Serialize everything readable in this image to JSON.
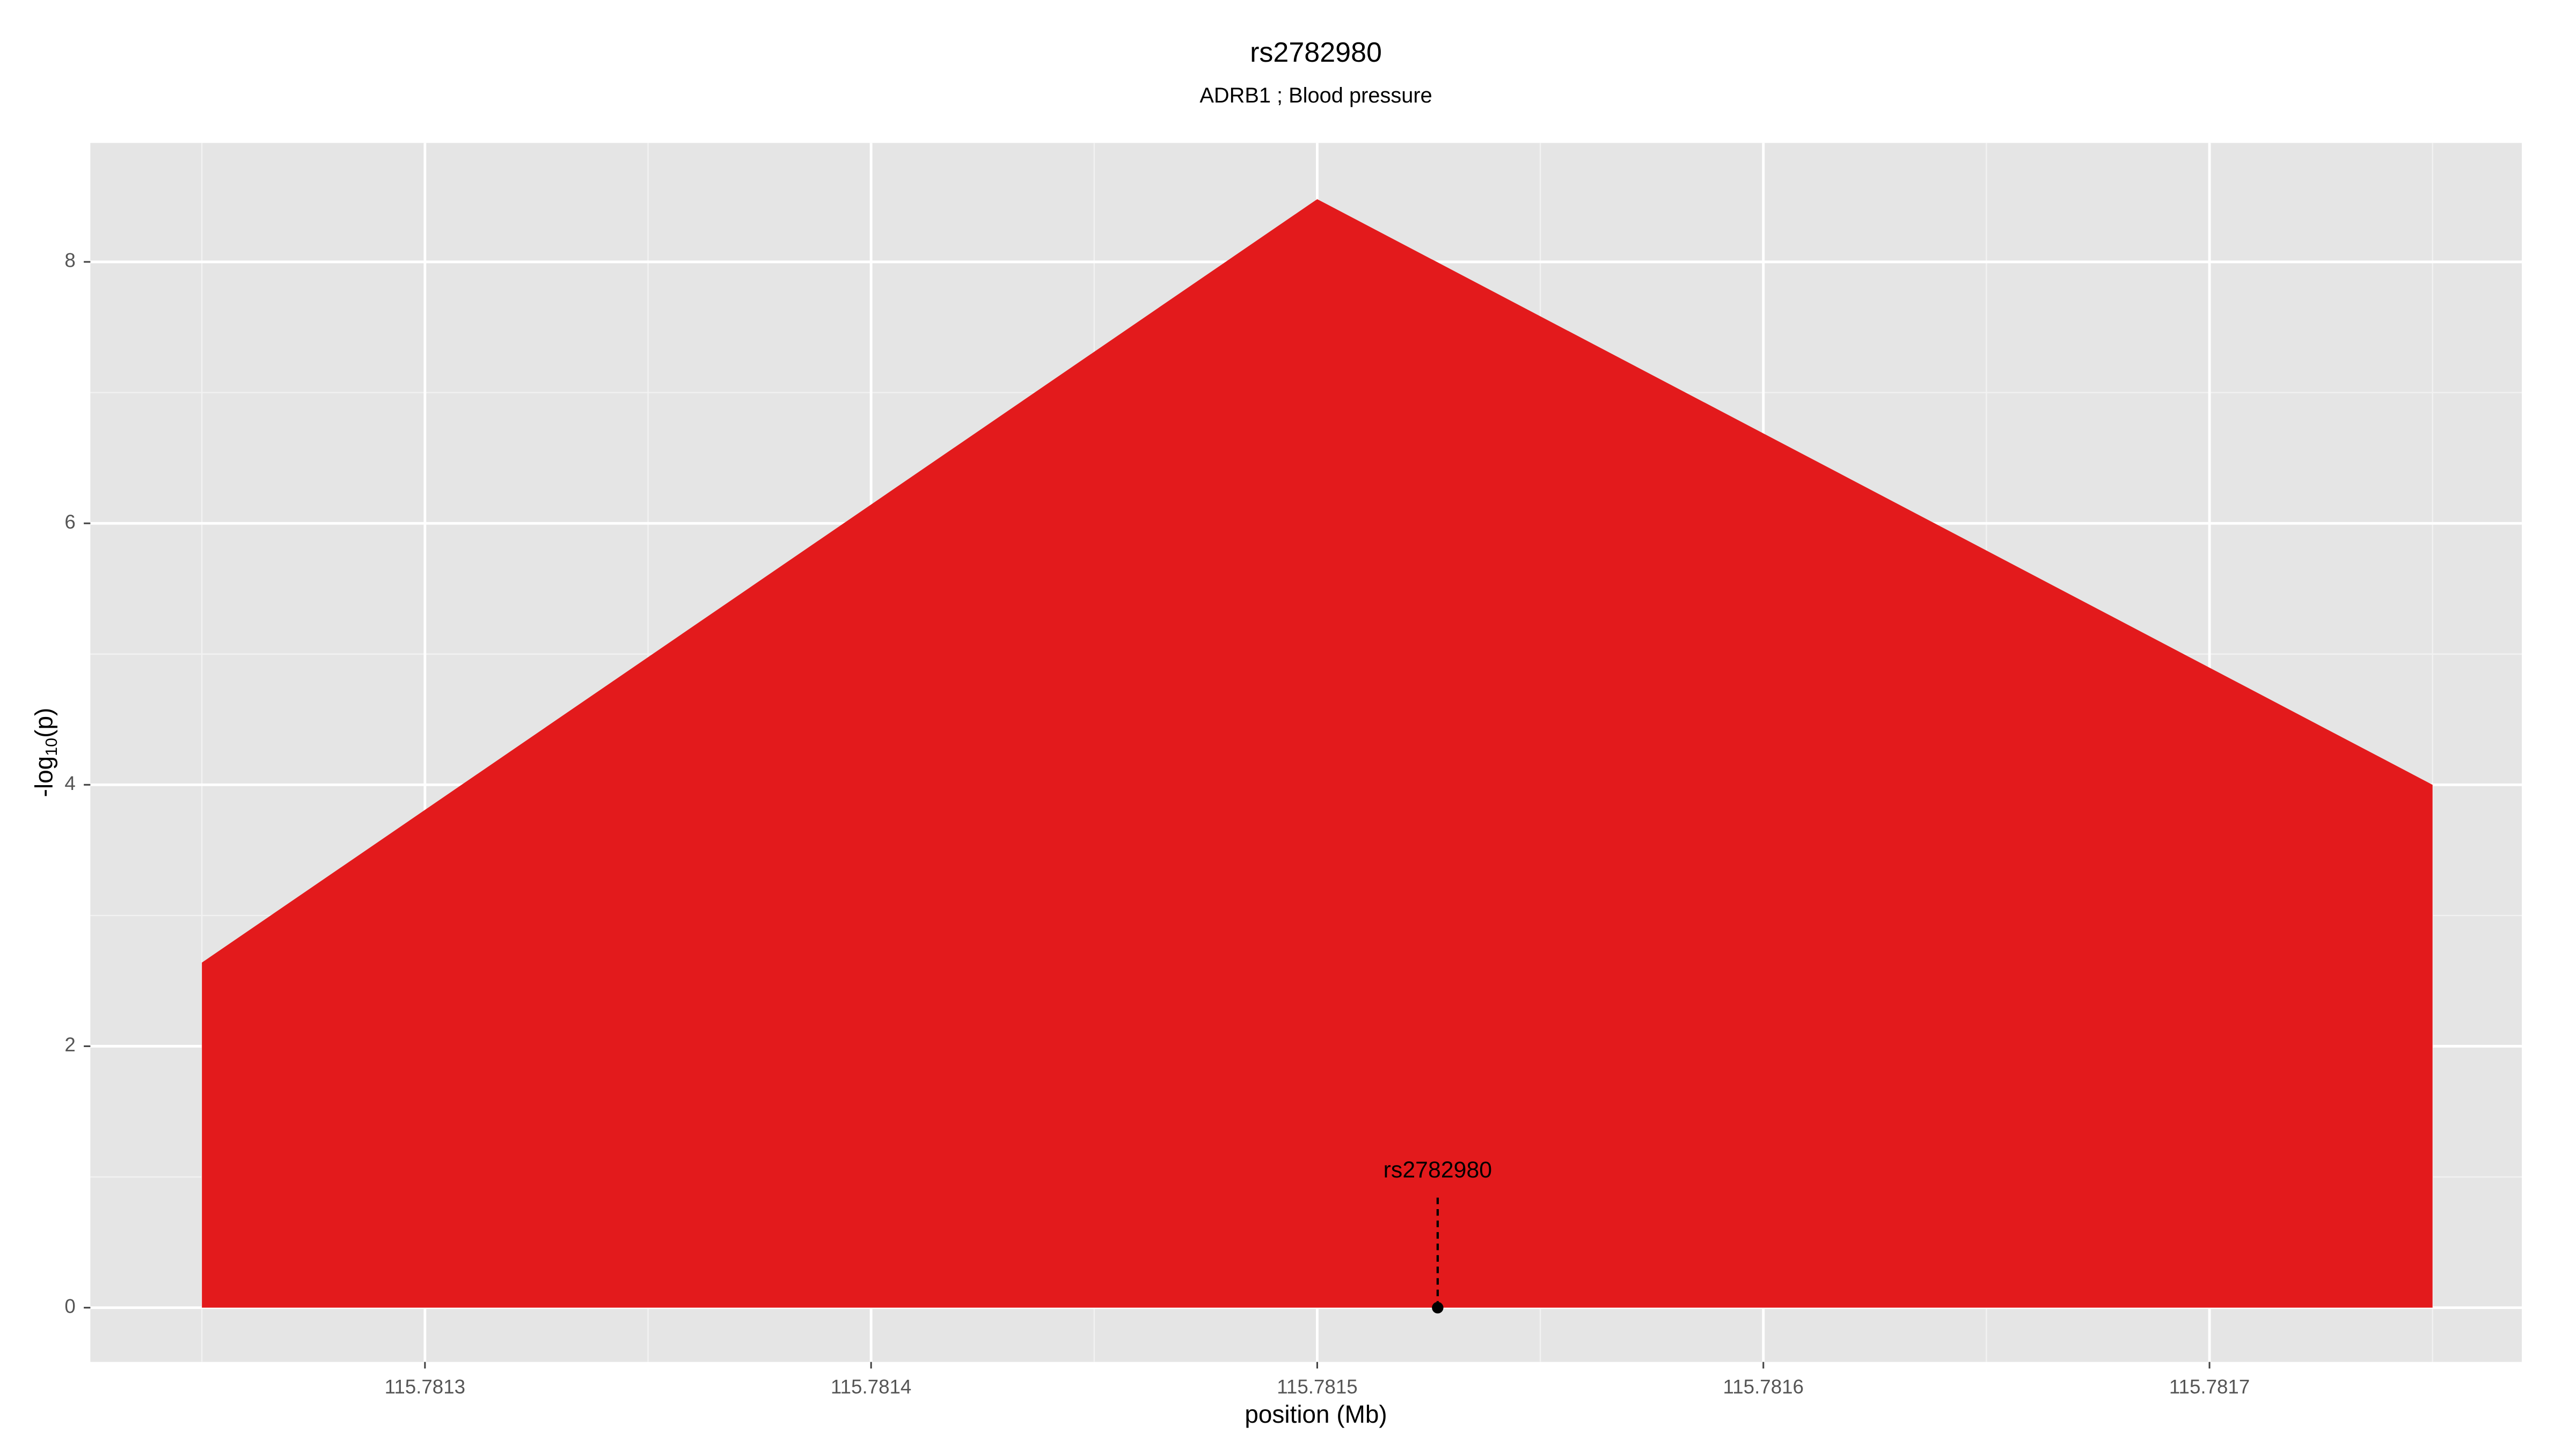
{
  "chart_data": {
    "type": "area",
    "title": "rs2782980",
    "subtitle": "ADRB1 ; Blood pressure",
    "xlabel": "position (Mb)",
    "ylabel_parts": [
      "-log",
      "10",
      "(p)"
    ],
    "x": [
      115.78125,
      115.7815,
      115.78175
    ],
    "series": [
      {
        "name": "rs2782980",
        "color": "#e31a1c",
        "values": [
          2.64,
          8.48,
          4.0
        ]
      }
    ],
    "xlim": [
      115.781225,
      115.78177
    ],
    "ylim": [
      -0.415,
      8.91
    ],
    "xticks": [
      115.7813,
      115.7814,
      115.7815,
      115.7816,
      115.7817
    ],
    "yticks": [
      0,
      2,
      4,
      6,
      8
    ],
    "grid": true,
    "minor_grid": true,
    "annotation": {
      "label": "rs2782980",
      "x": 115.781527,
      "y": 0
    }
  }
}
